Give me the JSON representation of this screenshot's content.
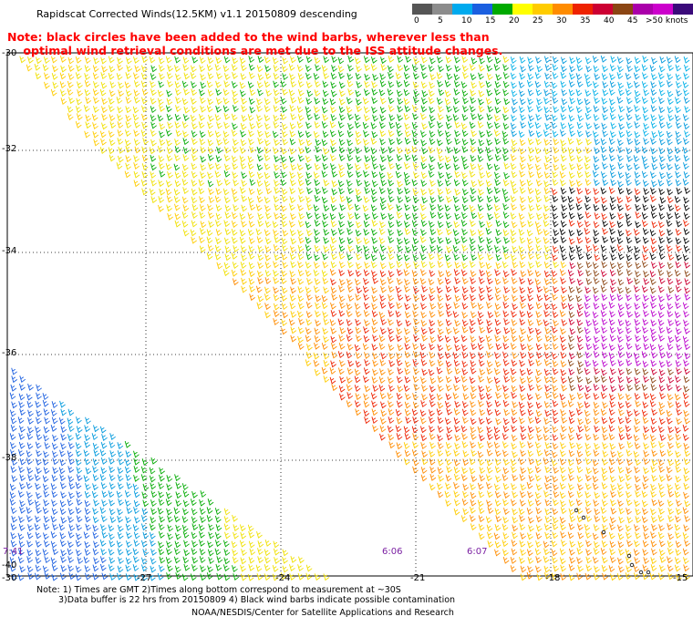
{
  "title": "Rapidscat Corrected Winds(12.5KM) v1.1 20150809 descending",
  "note": {
    "line1": "Note: black circles have been added to the wind barbs, wherever less than",
    "line2": "optimal wind retrieval conditions are met due to the ISS attitude changes."
  },
  "legend": {
    "unit": ">50 knots",
    "labels": [
      "0",
      "5",
      "10",
      "15",
      "20",
      "25",
      "30",
      "35",
      "40",
      "45"
    ],
    "colors": [
      "#555555",
      "#8c8c8c",
      "#00aaee",
      "#1b5fe0",
      "#00aa00",
      "#ffff00",
      "#ffcc00",
      "#ff8c00",
      "#ee2200",
      "#cc0033",
      "#8b4513",
      "#aa00aa",
      "#cc00cc",
      "#3a0a7a"
    ]
  },
  "axes": {
    "lat_labels": [
      "-30",
      "-32",
      "-34",
      "-36",
      "-38",
      "-40"
    ],
    "lon_labels": [
      "-30",
      "-27",
      "-24",
      "-21",
      "-18",
      "-15"
    ]
  },
  "times": [
    "7:41",
    "6:06",
    "6:07"
  ],
  "footer": {
    "line1": "Note: 1) Times are GMT 2)Times along bottom correspond to measurement at ~30S",
    "line2": "3)Data buffer is 22 hrs from 20150809 4) Black wind barbs indicate possible contamination",
    "credit": "NOAA/NESDIS/Center for Satellite Applications and Research"
  }
}
